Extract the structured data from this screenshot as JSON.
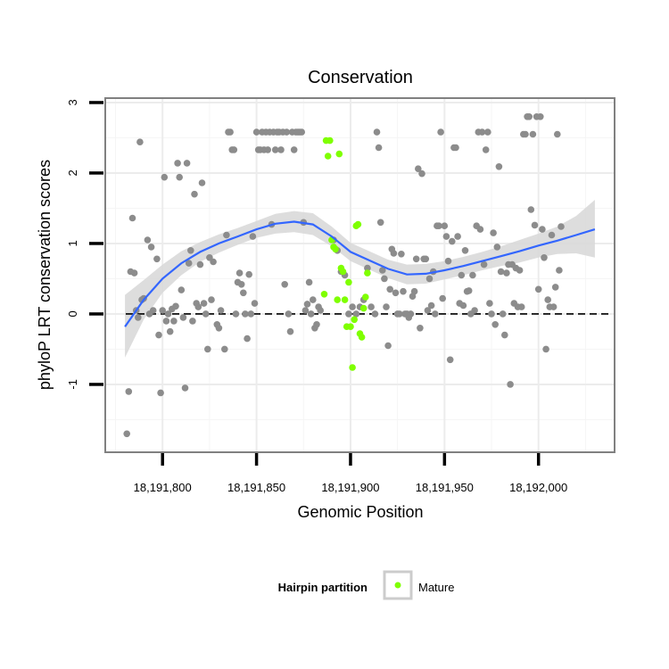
{
  "chart_data": {
    "type": "scatter",
    "title": "Conservation",
    "xlabel": "Genomic Position",
    "ylabel": "phyloP LRT conservation scores",
    "xlim": [
      18191770,
      18192040
    ],
    "ylim": [
      -1.95,
      3.05
    ],
    "x_ticks": [
      18191800,
      18191850,
      18191900,
      18191950,
      18192000
    ],
    "x_tick_labels": [
      "18,191,800",
      "18,191,850",
      "18,191,900",
      "18,191,950",
      "18,192,000"
    ],
    "y_ticks": [
      -1,
      0,
      1,
      2,
      3
    ],
    "y_tick_labels": [
      "-1",
      "0",
      "1",
      "2",
      "3"
    ],
    "reference_line_y": 0,
    "grid": true,
    "legend": {
      "position": "bottom",
      "title": "Hairpin partition",
      "entries": [
        {
          "label": "Mature",
          "color": "#7fff00"
        }
      ]
    },
    "colors": {
      "other": "#8c8c8c",
      "mature": "#7fff00",
      "smooth": "#3366ff",
      "band": "#d9d9d9"
    },
    "series": [
      {
        "points": [
          [
            18191781,
            -1.7
          ],
          [
            18191782,
            -1.1
          ],
          [
            18191783,
            0.6
          ],
          [
            18191784,
            1.36
          ],
          [
            18191785,
            0.58
          ],
          [
            18191786,
            0.05
          ],
          [
            18191787,
            -0.05
          ],
          [
            18191788,
            2.44
          ],
          [
            18191789,
            0.2
          ],
          [
            18191790,
            0.22
          ],
          [
            18191792,
            1.05
          ],
          [
            18191793,
            0.0
          ],
          [
            18191794,
            0.95
          ],
          [
            18191795,
            0.05
          ],
          [
            18191797,
            0.78
          ],
          [
            18191798,
            -0.3
          ],
          [
            18191799,
            -1.12
          ],
          [
            18191800,
            0.05
          ],
          [
            18191801,
            1.94
          ],
          [
            18191802,
            -0.1
          ],
          [
            18191803,
            0.0
          ],
          [
            18191804,
            -0.25
          ],
          [
            18191805,
            0.07
          ],
          [
            18191806,
            -0.1
          ],
          [
            18191807,
            0.11
          ],
          [
            18191808,
            2.14
          ],
          [
            18191809,
            1.94
          ],
          [
            18191810,
            0.34
          ],
          [
            18191811,
            -0.05
          ],
          [
            18191812,
            -1.05
          ],
          [
            18191813,
            2.14
          ],
          [
            18191814,
            0.72
          ],
          [
            18191815,
            0.9
          ],
          [
            18191816,
            -0.1
          ],
          [
            18191817,
            1.7
          ],
          [
            18191818,
            0.15
          ],
          [
            18191819,
            0.1
          ],
          [
            18191820,
            0.7
          ],
          [
            18191821,
            1.86
          ],
          [
            18191822,
            0.15
          ],
          [
            18191823,
            0.0
          ],
          [
            18191824,
            -0.5
          ],
          [
            18191825,
            0.8
          ],
          [
            18191826,
            0.2
          ],
          [
            18191827,
            0.74
          ],
          [
            18191829,
            -0.15
          ],
          [
            18191830,
            -0.2
          ],
          [
            18191831,
            0.05
          ],
          [
            18191833,
            -0.5
          ],
          [
            18191834,
            1.12
          ],
          [
            18191835,
            2.58
          ],
          [
            18191836,
            2.58
          ],
          [
            18191837,
            2.33
          ],
          [
            18191838,
            2.33
          ],
          [
            18191839,
            0.0
          ],
          [
            18191840,
            0.45
          ],
          [
            18191841,
            0.58
          ],
          [
            18191842,
            0.42
          ],
          [
            18191843,
            0.3
          ],
          [
            18191844,
            0.0
          ],
          [
            18191845,
            -0.35
          ],
          [
            18191846,
            0.56
          ],
          [
            18191847,
            0.0
          ],
          [
            18191848,
            1.1
          ],
          [
            18191849,
            0.15
          ],
          [
            18191850,
            2.58
          ],
          [
            18191851,
            2.33
          ],
          [
            18191852,
            2.33
          ],
          [
            18191853,
            2.58
          ],
          [
            18191854,
            2.33
          ],
          [
            18191855,
            2.58
          ],
          [
            18191856,
            2.33
          ],
          [
            18191857,
            2.58
          ],
          [
            18191858,
            1.27
          ],
          [
            18191859,
            2.58
          ],
          [
            18191860,
            2.33
          ],
          [
            18191861,
            2.58
          ],
          [
            18191862,
            2.58
          ],
          [
            18191863,
            2.33
          ],
          [
            18191864,
            2.58
          ],
          [
            18191865,
            0.42
          ],
          [
            18191866,
            2.58
          ],
          [
            18191867,
            0.0
          ],
          [
            18191868,
            -0.25
          ],
          [
            18191869,
            2.58
          ],
          [
            18191870,
            2.33
          ],
          [
            18191871,
            2.58
          ],
          [
            18191872,
            2.58
          ],
          [
            18191873,
            2.58
          ],
          [
            18191874,
            2.58
          ],
          [
            18191875,
            1.3
          ],
          [
            18191876,
            0.05
          ],
          [
            18191877,
            0.14
          ],
          [
            18191878,
            0.45
          ],
          [
            18191879,
            0.0
          ],
          [
            18191880,
            0.2
          ],
          [
            18191881,
            -0.2
          ],
          [
            18191882,
            -0.15
          ],
          [
            18191883,
            0.1
          ],
          [
            18191884,
            0.05
          ],
          [
            18191891,
            1.05
          ],
          [
            18191893,
            0.9
          ],
          [
            18191895,
            0.6
          ],
          [
            18191897,
            0.55
          ],
          [
            18191899,
            0.0
          ],
          [
            18191901,
            0.1
          ],
          [
            18191903,
            0.0
          ],
          [
            18191905,
            0.1
          ],
          [
            18191907,
            0.2
          ],
          [
            18191909,
            0.65
          ],
          [
            18191911,
            0.1
          ],
          [
            18191913,
            0.0
          ],
          [
            18191914,
            2.58
          ],
          [
            18191915,
            2.36
          ],
          [
            18191916,
            1.3
          ],
          [
            18191917,
            0.62
          ],
          [
            18191918,
            0.5
          ],
          [
            18191919,
            0.1
          ],
          [
            18191920,
            -0.45
          ],
          [
            18191921,
            0.35
          ],
          [
            18191922,
            0.92
          ],
          [
            18191923,
            0.86
          ],
          [
            18191924,
            0.3
          ],
          [
            18191925,
            0.0
          ],
          [
            18191926,
            0.0
          ],
          [
            18191927,
            0.85
          ],
          [
            18191928,
            0.32
          ],
          [
            18191929,
            0.0
          ],
          [
            18191930,
            0.0
          ],
          [
            18191931,
            -0.05
          ],
          [
            18191932,
            0.0
          ],
          [
            18191933,
            0.25
          ],
          [
            18191934,
            0.32
          ],
          [
            18191935,
            0.78
          ],
          [
            18191936,
            2.06
          ],
          [
            18191937,
            -0.2
          ],
          [
            18191938,
            1.99
          ],
          [
            18191939,
            0.78
          ],
          [
            18191940,
            0.78
          ],
          [
            18191941,
            0.05
          ],
          [
            18191942,
            0.5
          ],
          [
            18191943,
            0.12
          ],
          [
            18191944,
            0.6
          ],
          [
            18191945,
            0.0
          ],
          [
            18191946,
            1.25
          ],
          [
            18191947,
            1.25
          ],
          [
            18191948,
            2.58
          ],
          [
            18191949,
            0.22
          ],
          [
            18191950,
            1.25
          ],
          [
            18191951,
            1.1
          ],
          [
            18191952,
            0.75
          ],
          [
            18191953,
            -0.65
          ],
          [
            18191954,
            1.03
          ],
          [
            18191955,
            2.36
          ],
          [
            18191956,
            2.36
          ],
          [
            18191957,
            1.1
          ],
          [
            18191958,
            0.15
          ],
          [
            18191959,
            0.55
          ],
          [
            18191960,
            0.12
          ],
          [
            18191961,
            0.9
          ],
          [
            18191962,
            0.32
          ],
          [
            18191963,
            0.33
          ],
          [
            18191964,
            0.0
          ],
          [
            18191965,
            0.55
          ],
          [
            18191966,
            0.05
          ],
          [
            18191967,
            1.25
          ],
          [
            18191968,
            2.58
          ],
          [
            18191969,
            1.2
          ],
          [
            18191970,
            2.58
          ],
          [
            18191971,
            0.7
          ],
          [
            18191972,
            2.33
          ],
          [
            18191973,
            2.58
          ],
          [
            18191974,
            0.15
          ],
          [
            18191975,
            0.0
          ],
          [
            18191976,
            1.15
          ],
          [
            18191977,
            -0.15
          ],
          [
            18191978,
            0.95
          ],
          [
            18191979,
            2.09
          ],
          [
            18191980,
            0.6
          ],
          [
            18191981,
            0.0
          ],
          [
            18191982,
            -0.3
          ],
          [
            18191983,
            0.58
          ],
          [
            18191984,
            0.7
          ],
          [
            18191985,
            -1.0
          ],
          [
            18191986,
            0.7
          ],
          [
            18191987,
            0.15
          ],
          [
            18191988,
            0.65
          ],
          [
            18191989,
            0.1
          ],
          [
            18191990,
            0.62
          ],
          [
            18191991,
            0.1
          ],
          [
            18191992,
            2.55
          ],
          [
            18191993,
            2.55
          ],
          [
            18191994,
            2.8
          ],
          [
            18191995,
            2.8
          ],
          [
            18191996,
            1.48
          ],
          [
            18191997,
            2.55
          ],
          [
            18191998,
            1.26
          ],
          [
            18191999,
            2.8
          ],
          [
            18192000,
            0.35
          ],
          [
            18192001,
            2.8
          ],
          [
            18192002,
            1.2
          ],
          [
            18192003,
            0.8
          ],
          [
            18192004,
            -0.5
          ],
          [
            18192005,
            0.2
          ],
          [
            18192006,
            0.1
          ],
          [
            18192007,
            1.12
          ],
          [
            18192008,
            0.1
          ],
          [
            18192009,
            0.38
          ],
          [
            18192010,
            2.55
          ],
          [
            18192011,
            0.62
          ],
          [
            18192012,
            1.24
          ]
        ]
      },
      {
        "name": "Mature",
        "points": [
          [
            18191886,
            0.28
          ],
          [
            18191887,
            2.46
          ],
          [
            18191888,
            2.24
          ],
          [
            18191889,
            2.46
          ],
          [
            18191890,
            1.05
          ],
          [
            18191891,
            0.95
          ],
          [
            18191892,
            0.92
          ],
          [
            18191893,
            0.2
          ],
          [
            18191894,
            2.27
          ],
          [
            18191895,
            0.65
          ],
          [
            18191896,
            0.6
          ],
          [
            18191897,
            0.2
          ],
          [
            18191898,
            -0.18
          ],
          [
            18191899,
            0.45
          ],
          [
            18191900,
            -0.18
          ],
          [
            18191901,
            -0.76
          ],
          [
            18191902,
            -0.08
          ],
          [
            18191903,
            1.25
          ],
          [
            18191904,
            1.27
          ],
          [
            18191905,
            -0.28
          ],
          [
            18191906,
            -0.33
          ],
          [
            18191907,
            0.08
          ],
          [
            18191908,
            0.24
          ],
          [
            18191909,
            0.58
          ]
        ]
      }
    ],
    "smooth": {
      "x": [
        18191780,
        18191790,
        18191800,
        18191810,
        18191820,
        18191830,
        18191840,
        18191850,
        18191860,
        18191870,
        18191880,
        18191890,
        18191900,
        18191910,
        18191920,
        18191930,
        18191940,
        18191950,
        18191960,
        18191970,
        18191980,
        18191990,
        18192000,
        18192010,
        18192020,
        18192030
      ],
      "y": [
        -0.18,
        0.2,
        0.5,
        0.72,
        0.88,
        1.0,
        1.1,
        1.2,
        1.28,
        1.31,
        1.27,
        1.1,
        0.88,
        0.76,
        0.64,
        0.56,
        0.57,
        0.62,
        0.68,
        0.75,
        0.82,
        0.89,
        0.97,
        1.04,
        1.12,
        1.2
      ],
      "lower": [
        -0.62,
        -0.08,
        0.3,
        0.55,
        0.74,
        0.87,
        0.98,
        1.08,
        1.14,
        1.16,
        1.12,
        0.96,
        0.75,
        0.63,
        0.51,
        0.42,
        0.43,
        0.49,
        0.55,
        0.62,
        0.68,
        0.73,
        0.8,
        0.85,
        0.86,
        0.8
      ],
      "upper": [
        0.27,
        0.48,
        0.7,
        0.89,
        1.02,
        1.13,
        1.22,
        1.32,
        1.42,
        1.46,
        1.43,
        1.24,
        1.01,
        0.89,
        0.77,
        0.7,
        0.71,
        0.75,
        0.81,
        0.88,
        0.96,
        1.05,
        1.14,
        1.24,
        1.39,
        1.62
      ]
    }
  }
}
